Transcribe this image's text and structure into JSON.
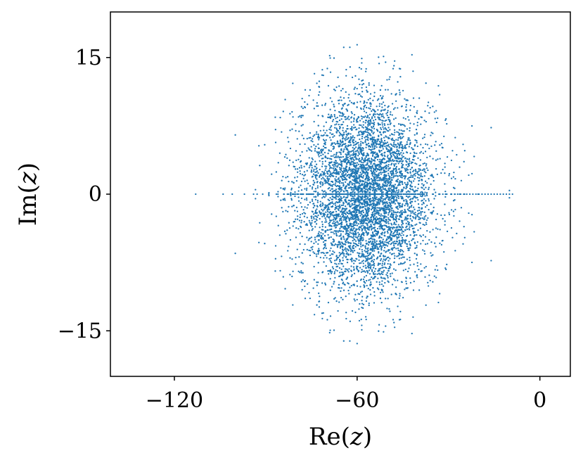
{
  "chart_data": {
    "type": "scatter",
    "title": "",
    "xlabel_prefix": "Re(",
    "xlabel_var": "z",
    "xlabel_suffix": ")",
    "ylabel_prefix": "Im(",
    "ylabel_var": "z",
    "ylabel_suffix": ")",
    "xlim": [
      -141,
      10
    ],
    "ylim": [
      -20,
      20
    ],
    "xticks": [
      -120,
      -60,
      0
    ],
    "xtick_labels": [
      "−120",
      "−60",
      "0"
    ],
    "yticks": [
      -15,
      0,
      15
    ],
    "ytick_labels": [
      "−15",
      "0",
      "15"
    ],
    "grid": false,
    "marker_color": "#1f77b4",
    "point_cloud": {
      "description_of_shape": "elliptical cloud of complex eigenvalues",
      "n_points": 5200,
      "center": [
        -57,
        0
      ],
      "spread_re": 22,
      "spread_im": 6.5,
      "max_abs_im": 16.4,
      "re_range": [
        -105,
        -15
      ],
      "seed": 20240611
    },
    "real_axis_points": [
      -113,
      -104,
      -101,
      -97,
      -94,
      -91,
      -89,
      -86,
      -84,
      -81,
      -78,
      -76,
      -73,
      -70,
      -68,
      -65,
      -62,
      -59,
      -56,
      -53,
      -50,
      -47,
      -44,
      -41,
      -38,
      -35,
      -33,
      -31,
      -29,
      -28,
      -27,
      -26,
      -25,
      -24,
      -23,
      -22,
      -21,
      -20,
      -19,
      -18,
      -17,
      -16,
      -15,
      -14,
      -13,
      -12,
      -11,
      -10,
      -9
    ],
    "notable_points": [
      {
        "x": -60,
        "y": 16.4
      },
      {
        "x": -60,
        "y": -16.4
      },
      {
        "x": -42,
        "y": 15.3
      },
      {
        "x": -42,
        "y": -15.3
      },
      {
        "x": -69,
        "y": 15.2
      },
      {
        "x": -69,
        "y": -15.2
      },
      {
        "x": -100,
        "y": 6.5
      },
      {
        "x": -100,
        "y": -6.5
      },
      {
        "x": -16,
        "y": 7.3
      },
      {
        "x": -16,
        "y": -7.3
      },
      {
        "x": -10,
        "y": 0.4
      },
      {
        "x": -10,
        "y": -0.4
      }
    ]
  }
}
